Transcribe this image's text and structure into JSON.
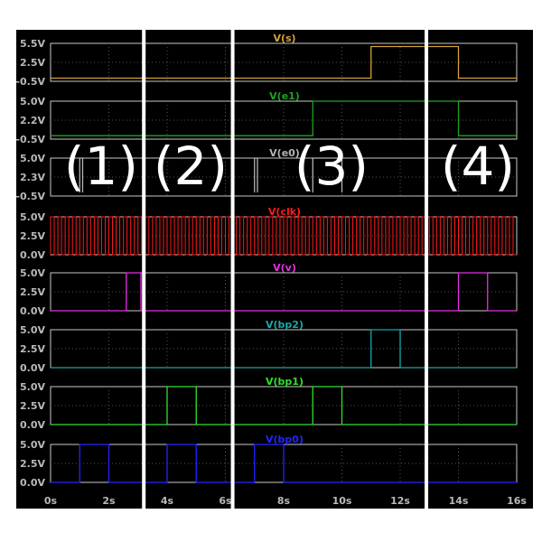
{
  "chart_data": {
    "type": "line",
    "title": "",
    "xlabel": "",
    "x_range": [
      0,
      16
    ],
    "x_ticks": [
      "0s",
      "2s",
      "4s",
      "6s",
      "8s",
      "10s",
      "12s",
      "14s",
      "16s"
    ],
    "grid": true,
    "section_labels": [
      "(1)",
      "(2)",
      "(3)",
      "(4)"
    ],
    "section_dividers_s": [
      3.2,
      6.25,
      12.9
    ],
    "colors": {
      "background": "#000000",
      "frame": "#c8c8c8",
      "divider": "#ffffff",
      "tick_text": "#b9b9b9"
    },
    "panels": [
      {
        "name": "V(s)",
        "color": "#d4a13a",
        "yticks": [
          "5.5V",
          "2.5V",
          "-0.5V"
        ],
        "ylim": [
          -0.5,
          5.5
        ],
        "segments": [
          [
            [
              0,
              0
            ],
            [
              11,
              0
            ],
            [
              11,
              5
            ],
            [
              14,
              5
            ],
            [
              14,
              0
            ],
            [
              16,
              0
            ]
          ]
        ]
      },
      {
        "name": "V(e1)",
        "color": "#1fa21f",
        "yticks": [
          "5.0V",
          "2.2V",
          "-0.5V"
        ],
        "ylim": [
          -0.5,
          5.0
        ],
        "segments": [
          [
            [
              0,
              0
            ],
            [
              9,
              0
            ],
            [
              9,
              5
            ],
            [
              14,
              5
            ],
            [
              14,
              0
            ],
            [
              16,
              0
            ]
          ]
        ]
      },
      {
        "name": "V(e0)",
        "color": "#b4b4b4",
        "yticks": [
          "5.0V",
          "2.3V",
          "-0.5V"
        ],
        "ylim": [
          -0.5,
          5.0
        ],
        "segments": [
          [
            [
              1,
              0
            ],
            [
              1,
              5
            ],
            [
              1.1,
              5
            ],
            [
              1.1,
              0
            ]
          ],
          [
            [
              7,
              0
            ],
            [
              7,
              5
            ],
            [
              7.1,
              5
            ],
            [
              7.1,
              0
            ]
          ],
          [
            [
              9,
              0
            ],
            [
              9,
              5
            ],
            [
              10,
              5
            ],
            [
              10,
              0
            ]
          ]
        ]
      },
      {
        "name": "V(clk)",
        "color": "#ff1a1a",
        "yticks": [
          "5.0V",
          "2.5V",
          "0.0V"
        ],
        "ylim": [
          0,
          5.0
        ],
        "clock": {
          "period": 0.25,
          "high": 5,
          "low": 0,
          "from": 0,
          "to": 16
        }
      },
      {
        "name": "V(v)",
        "color": "#e62ee6",
        "yticks": [
          "5.0V",
          "2.5V",
          "0.0V"
        ],
        "ylim": [
          0,
          5.0
        ],
        "segments": [
          [
            [
              0,
              0
            ],
            [
              2.6,
              0
            ],
            [
              2.6,
              5
            ],
            [
              3.1,
              5
            ],
            [
              3.1,
              0
            ],
            [
              14,
              0
            ],
            [
              14,
              5
            ],
            [
              15,
              5
            ],
            [
              15,
              0
            ],
            [
              16,
              0
            ]
          ]
        ]
      },
      {
        "name": "V(bp2)",
        "color": "#1aa8a8",
        "yticks": [
          "5.0V",
          "2.5V",
          "0.0V"
        ],
        "ylim": [
          0,
          5.0
        ],
        "segments": [
          [
            [
              0,
              0
            ],
            [
              11,
              0
            ],
            [
              11,
              5
            ],
            [
              12,
              5
            ],
            [
              12,
              0
            ],
            [
              16,
              0
            ]
          ]
        ]
      },
      {
        "name": "V(bp1)",
        "color": "#2ee02e",
        "yticks": [
          "5.0V",
          "2.5V",
          "0.0V"
        ],
        "ylim": [
          0,
          5.0
        ],
        "segments": [
          [
            [
              0,
              0
            ],
            [
              4,
              0
            ],
            [
              4,
              5
            ],
            [
              5,
              5
            ],
            [
              5,
              0
            ],
            [
              9,
              0
            ],
            [
              9,
              5
            ],
            [
              10,
              5
            ],
            [
              10,
              0
            ],
            [
              16,
              0
            ]
          ]
        ]
      },
      {
        "name": "V(bp0)",
        "color": "#2424ff",
        "yticks": [
          "5.0V",
          "2.5V",
          "0.0V"
        ],
        "ylim": [
          0,
          5.0
        ],
        "segments": [
          [
            [
              0,
              0
            ],
            [
              1,
              0
            ],
            [
              1,
              5
            ],
            [
              2,
              5
            ],
            [
              2,
              0
            ],
            [
              4,
              0
            ],
            [
              4,
              5
            ],
            [
              5,
              5
            ],
            [
              5,
              0
            ],
            [
              7,
              0
            ],
            [
              7,
              5
            ],
            [
              8,
              5
            ],
            [
              8,
              0
            ],
            [
              16,
              0
            ]
          ]
        ]
      }
    ]
  }
}
